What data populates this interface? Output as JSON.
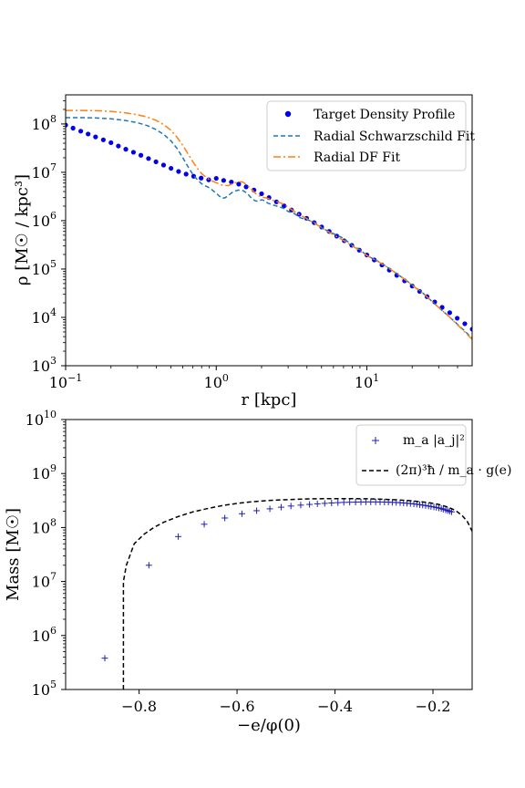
{
  "colors": {
    "target": "#0000ee",
    "schwarzschild": "#1f77b4",
    "df": "#ff7f0e",
    "mass_markers": "#1f1fb4",
    "g_curve": "#000000"
  },
  "chart_data": [
    {
      "type": "line",
      "scale": {
        "x": "log",
        "y": "log"
      },
      "xlim": [
        0.1,
        50
      ],
      "ylim": [
        1000,
        400000000
      ],
      "xlabel": "r [kpc]",
      "ylabel": "ρ [M☉ / kpc³]",
      "xticks": [
        {
          "value": 0.1,
          "base": "10",
          "exp": "−1"
        },
        {
          "value": 1,
          "base": "10",
          "exp": "0"
        },
        {
          "value": 10,
          "base": "10",
          "exp": "1"
        }
      ],
      "yticks": [
        {
          "value": 1000,
          "base": "10",
          "exp": "3"
        },
        {
          "value": 10000,
          "base": "10",
          "exp": "4"
        },
        {
          "value": 100000,
          "base": "10",
          "exp": "5"
        },
        {
          "value": 1000000,
          "base": "10",
          "exp": "6"
        },
        {
          "value": 10000000,
          "base": "10",
          "exp": "7"
        },
        {
          "value": 100000000,
          "base": "10",
          "exp": "8"
        }
      ],
      "legend": {
        "placement": "upper right"
      },
      "series": [
        {
          "name": "Target Density Profile",
          "style": "dots",
          "x": [
            0.1,
            0.112,
            0.126,
            0.141,
            0.158,
            0.178,
            0.2,
            0.224,
            0.251,
            0.282,
            0.316,
            0.355,
            0.398,
            0.447,
            0.501,
            0.562,
            0.631,
            0.708,
            0.794,
            0.891,
            1.0,
            1.12,
            1.26,
            1.41,
            1.58,
            1.78,
            2.0,
            2.24,
            2.51,
            2.82,
            3.16,
            3.55,
            3.98,
            4.47,
            5.01,
            5.62,
            6.31,
            7.08,
            7.94,
            8.91,
            10.0,
            11.2,
            12.6,
            14.1,
            15.8,
            17.8,
            20.0,
            22.4,
            25.1,
            28.2,
            31.6,
            35.5,
            39.8,
            44.7,
            50.1
          ],
          "y": [
            95000000,
            82000000,
            71000000,
            62000000,
            54000000,
            47000000,
            41000000,
            35000000,
            30000000,
            26000000,
            22500000,
            19300000,
            16500000,
            14100000,
            12100000,
            10400000,
            9200000,
            8300000,
            7600000,
            7000000,
            7500000,
            6800000,
            6300000,
            5700000,
            5000000,
            4300000,
            3600000,
            3000000,
            2450000,
            2020000,
            1660000,
            1360000,
            1120000,
            910000,
            740000,
            600000,
            480000,
            385000,
            310000,
            246000,
            195000,
            154000,
            121000,
            95000,
            74000,
            57000,
            44500,
            34500,
            26800,
            20800,
            16100,
            12500,
            9600,
            7400,
            5700
          ]
        },
        {
          "name": "Radial Schwarzschild Fit",
          "style": "dashed",
          "x": [
            0.1,
            0.13,
            0.16,
            0.2,
            0.25,
            0.3,
            0.35,
            0.4,
            0.45,
            0.5,
            0.55,
            0.6,
            0.65,
            0.7,
            0.75,
            0.8,
            0.85,
            0.9,
            0.95,
            1.0,
            1.05,
            1.1,
            1.15,
            1.2,
            1.3,
            1.4,
            1.5,
            1.6,
            1.7,
            1.8,
            1.9,
            2.0,
            2.1,
            2.2,
            2.4,
            2.6,
            2.8,
            3.0,
            3.3,
            3.6,
            4.0,
            4.5,
            5.0,
            5.5,
            6.0,
            7.0,
            8.0,
            9.0,
            10.0,
            12.0,
            14.0,
            16.0,
            18.0,
            20.0,
            23.0,
            26.0,
            30.0,
            35.0,
            40.0,
            45.0,
            50.0
          ],
          "y": [
            135000000,
            135000000,
            133000000,
            128000000,
            118000000,
            106000000,
            92000000,
            76000000,
            60000000,
            45000000,
            31000000,
            20000000,
            13000000,
            9000000,
            7000000,
            5800000,
            5200000,
            4800000,
            4200000,
            3700000,
            3200000,
            2900000,
            3000000,
            3300000,
            4000000,
            4300000,
            4200000,
            3700000,
            3000000,
            2600000,
            2500000,
            2700000,
            2600000,
            2300000,
            2100000,
            1950000,
            1800000,
            1550000,
            1400000,
            1150000,
            1050000,
            920000,
            720000,
            610000,
            540000,
            430000,
            310000,
            250000,
            190000,
            142000,
            104000,
            78000,
            60000,
            47000,
            34000,
            24000,
            16000,
            10500,
            7200,
            5100,
            3700
          ]
        },
        {
          "name": "Radial DF Fit",
          "style": "dashdot",
          "x": [
            0.1,
            0.13,
            0.16,
            0.2,
            0.25,
            0.3,
            0.35,
            0.4,
            0.45,
            0.5,
            0.55,
            0.6,
            0.65,
            0.7,
            0.75,
            0.8,
            0.85,
            0.9,
            0.95,
            1.0,
            1.05,
            1.1,
            1.2,
            1.3,
            1.4,
            1.5,
            1.6,
            1.7,
            1.8,
            1.9,
            2.0,
            2.2,
            2.4,
            2.6,
            2.8,
            3.0,
            3.3,
            3.6,
            4.0,
            4.5,
            5.0,
            5.5,
            6.0,
            7.0,
            8.0,
            9.0,
            10.0,
            12.0,
            14.0,
            16.0,
            18.0,
            20.0,
            23.0,
            26.0,
            30.0,
            35.0,
            40.0,
            45.0,
            50.0
          ],
          "y": [
            190000000,
            190000000,
            188000000,
            182000000,
            170000000,
            155000000,
            138000000,
            118000000,
            96000000,
            74000000,
            53000000,
            36000000,
            24000000,
            16500000,
            12000000,
            9400000,
            8000000,
            7100000,
            6500000,
            6100000,
            5700000,
            5400000,
            5300000,
            5900000,
            6400000,
            6300000,
            5500000,
            4600000,
            3800000,
            3300000,
            3100000,
            2900000,
            2600000,
            2400000,
            2200000,
            1900000,
            1550000,
            1300000,
            1100000,
            880000,
            720000,
            600000,
            510000,
            390000,
            300000,
            240000,
            190000,
            140000,
            104000,
            78000,
            60000,
            46000,
            33500,
            24000,
            16000,
            10500,
            7000,
            4900,
            3500
          ]
        }
      ]
    },
    {
      "type": "scatter",
      "scale": {
        "x": "linear",
        "y": "log"
      },
      "xlim": [
        -0.95,
        -0.12
      ],
      "ylim": [
        100000,
        10000000000
      ],
      "xlabel": "−e/φ(0)",
      "ylabel": "Mass [M☉]",
      "xticks": [
        {
          "value": -0.8,
          "label": "−0.8"
        },
        {
          "value": -0.6,
          "label": "−0.6"
        },
        {
          "value": -0.4,
          "label": "−0.4"
        },
        {
          "value": -0.2,
          "label": "−0.2"
        }
      ],
      "yticks": [
        {
          "value": 100000,
          "base": "10",
          "exp": "5"
        },
        {
          "value": 1000000,
          "base": "10",
          "exp": "6"
        },
        {
          "value": 10000000,
          "base": "10",
          "exp": "7"
        },
        {
          "value": 100000000,
          "base": "10",
          "exp": "8"
        },
        {
          "value": 1000000000,
          "base": "10",
          "exp": "9"
        },
        {
          "value": 10000000000,
          "base": "10",
          "exp": "10"
        }
      ],
      "legend": {
        "placement": "upper right"
      },
      "series": [
        {
          "name": "m_a |a_j|²",
          "style": "plus",
          "x": [
            -0.87,
            -0.78,
            -0.72,
            -0.667,
            -0.625,
            -0.59,
            -0.56,
            -0.533,
            -0.51,
            -0.49,
            -0.47,
            -0.452,
            -0.436,
            -0.421,
            -0.407,
            -0.394,
            -0.382,
            -0.37,
            -0.358,
            -0.347,
            -0.337,
            -0.327,
            -0.317,
            -0.308,
            -0.299,
            -0.291,
            -0.283,
            -0.275,
            -0.267,
            -0.26,
            -0.253,
            -0.246,
            -0.239,
            -0.233,
            -0.227,
            -0.221,
            -0.215,
            -0.209,
            -0.204,
            -0.198,
            -0.193,
            -0.188,
            -0.183,
            -0.179,
            -0.174,
            -0.17,
            -0.166,
            -0.162
          ],
          "y": [
            380000,
            20000000,
            68000000,
            115000000,
            150000000,
            180000000,
            205000000,
            222000000,
            238000000,
            250000000,
            260000000,
            268000000,
            275000000,
            280000000,
            285000000,
            289000000,
            292000000,
            294000000,
            296000000,
            297000000,
            298000000,
            298000000,
            298000000,
            297000000,
            296000000,
            295000000,
            293000000,
            291000000,
            288000000,
            285000000,
            282000000,
            278000000,
            274000000,
            270000000,
            265000000,
            260000000,
            255000000,
            250000000,
            245000000,
            240000000,
            235000000,
            230000000,
            225000000,
            218000000,
            212000000,
            206000000,
            200000000,
            195000000
          ]
        },
        {
          "name": "(2π)³ħ / m_a · g(e)",
          "style": "dashed",
          "x": [
            -0.832,
            -0.832,
            -0.826,
            -0.81,
            -0.79,
            -0.77,
            -0.75,
            -0.72,
            -0.69,
            -0.66,
            -0.63,
            -0.6,
            -0.57,
            -0.54,
            -0.51,
            -0.48,
            -0.45,
            -0.42,
            -0.39,
            -0.36,
            -0.33,
            -0.3,
            -0.27,
            -0.24,
            -0.21,
            -0.19,
            -0.17,
            -0.16,
            -0.15,
            -0.14,
            -0.13,
            -0.12
          ],
          "y": [
            100000,
            10000000,
            20000000,
            50000000,
            75000000,
            100000000,
            125000000,
            160000000,
            195000000,
            225000000,
            255000000,
            280000000,
            300000000,
            315000000,
            325000000,
            333000000,
            340000000,
            342000000,
            343000000,
            342000000,
            340000000,
            333000000,
            325000000,
            310000000,
            290000000,
            270000000,
            240000000,
            220000000,
            195000000,
            165000000,
            130000000,
            85000000
          ]
        }
      ]
    }
  ]
}
